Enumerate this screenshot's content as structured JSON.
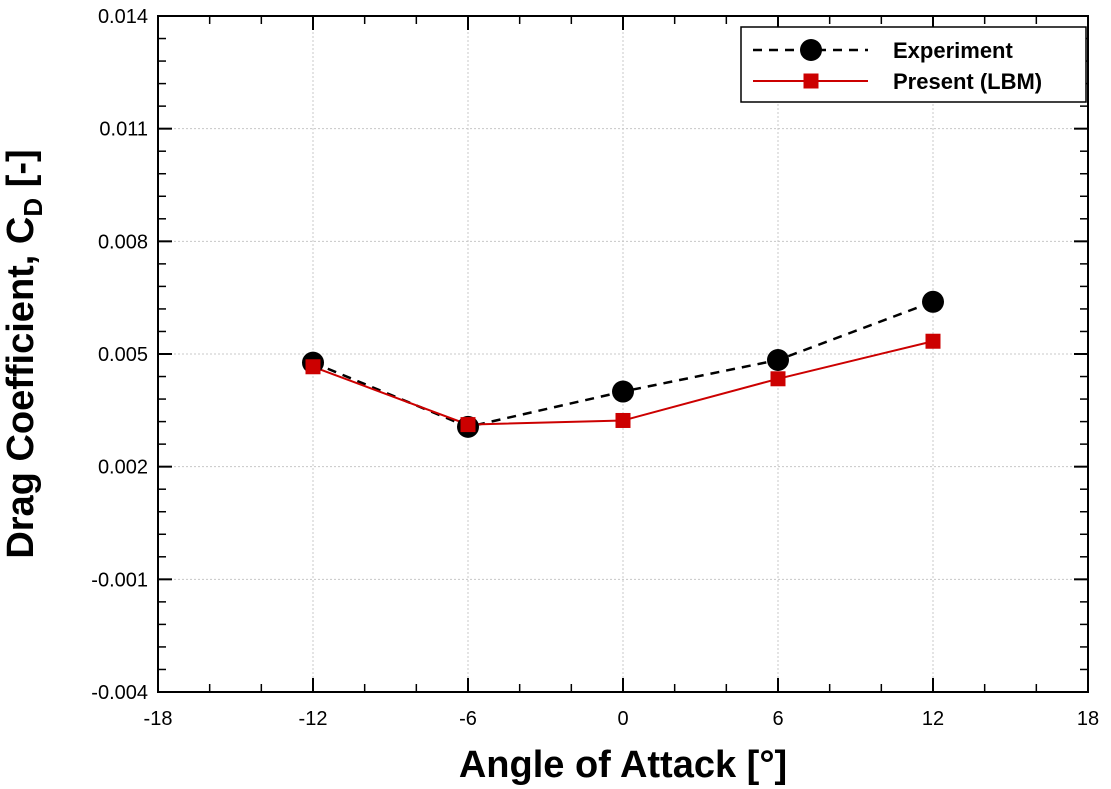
{
  "chart_data": {
    "type": "line",
    "title": "",
    "xlabel": "Angle of Attack [°]",
    "ylabel": "Drag Coefficient, C",
    "ylabel_subscript": "D",
    "ylabel_suffix": " [-]",
    "xlim": [
      -18,
      18
    ],
    "ylim": [
      -0.004,
      0.014
    ],
    "xticks": [
      -18,
      -12,
      -6,
      0,
      6,
      12,
      18
    ],
    "xtick_labels": [
      "-18",
      "-12",
      "-6",
      "0",
      "6",
      "12",
      "18"
    ],
    "yticks": [
      -0.004,
      -0.001,
      0.002,
      0.005,
      0.008,
      0.011,
      0.014
    ],
    "ytick_labels": [
      "-0.004",
      "-0.001",
      "0.002",
      "0.005",
      "0.008",
      "0.011",
      "0.014"
    ],
    "grid": true,
    "legend_position": "top-right",
    "x": [
      -12,
      -6,
      0,
      6,
      12
    ],
    "series": [
      {
        "name": "Experiment",
        "values": [
          0.00477,
          0.00306,
          0.004,
          0.00484,
          0.00639
        ],
        "color": "#000000",
        "style": "dashed",
        "marker": "circle"
      },
      {
        "name": "Present (LBM)",
        "values": [
          0.00466,
          0.00312,
          0.00323,
          0.00434,
          0.00534
        ],
        "color": "#cc0000",
        "style": "solid",
        "marker": "square"
      }
    ]
  }
}
